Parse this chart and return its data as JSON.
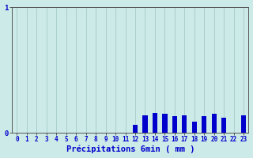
{
  "title": "",
  "xlabel": "Précipitations 6min ( mm )",
  "ylabel": "",
  "background_color": "#cceae7",
  "bar_color": "#0000cc",
  "grid_color": "#aacfcc",
  "axis_color": "#555555",
  "text_color": "#0000cc",
  "xlim": [
    -0.5,
    23.5
  ],
  "ylim": [
    0,
    1.0
  ],
  "yticks": [
    0,
    1
  ],
  "xticks": [
    0,
    1,
    2,
    3,
    4,
    5,
    6,
    7,
    8,
    9,
    10,
    11,
    12,
    13,
    14,
    15,
    16,
    17,
    18,
    19,
    20,
    21,
    22,
    23
  ],
  "values": [
    0,
    0,
    0,
    0,
    0,
    0,
    0,
    0,
    0,
    0,
    0,
    0,
    0.06,
    0.14,
    0.16,
    0.15,
    0.13,
    0.14,
    0.09,
    0.13,
    0.15,
    0.12,
    0,
    0.14
  ],
  "bar_width": 0.5
}
